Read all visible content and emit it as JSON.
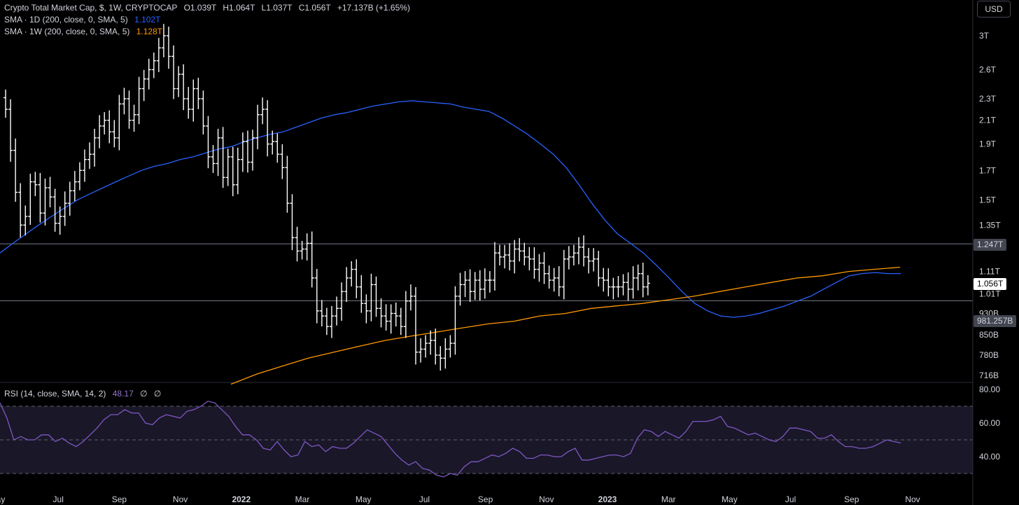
{
  "header": {
    "title": "Crypto Total Market Cap, $, 1W, CRYPTOCAP",
    "open": "O1.039T",
    "high": "H1.064T",
    "low": "L1.037T",
    "close": "C1.056T",
    "change": "+17.137B (+1.65%)",
    "sma1_label": "SMA · 1D (200, close, 0, SMA, 5)",
    "sma1_value": "1.102T",
    "sma2_label": "SMA · 1W (200, close, 0, SMA, 5)",
    "sma2_value": "1.128T",
    "rsi_label": "RSI (14, close, SMA, 14, 2)",
    "rsi_value": "48.17",
    "rsi_extra1": "∅",
    "rsi_extra2": "∅",
    "currency": "USD"
  },
  "price_tags": {
    "resistance": "1.247T",
    "current": "1.056T",
    "support": "981.257B"
  },
  "colors": {
    "background": "#000000",
    "bars": "#ffffff",
    "sma_1d": "#2962ff",
    "sma_1w": "#ff9800",
    "rsi": "#7e57c2",
    "rsi_band": "#1a1729",
    "hline": "#787b86",
    "axis_text": "#d1d4dc"
  },
  "chart_data": {
    "type": "ohlc",
    "scale": "log",
    "interval": "1W",
    "price_axis": {
      "ticks": [
        {
          "value": 3.0,
          "label": "3T"
        },
        {
          "value": 2.6,
          "label": "2.6T"
        },
        {
          "value": 2.3,
          "label": "2.3T"
        },
        {
          "value": 2.1,
          "label": "2.1T"
        },
        {
          "value": 1.9,
          "label": "1.9T"
        },
        {
          "value": 1.7,
          "label": "1.7T"
        },
        {
          "value": 1.5,
          "label": "1.5T"
        },
        {
          "value": 1.35,
          "label": "1.35T"
        },
        {
          "value": 1.11,
          "label": "1.11T"
        },
        {
          "value": 1.01,
          "label": "1.01T"
        },
        {
          "value": 0.93,
          "label": "930B"
        },
        {
          "value": 0.85,
          "label": "850B"
        },
        {
          "value": 0.78,
          "label": "780B"
        },
        {
          "value": 0.716,
          "label": "716B"
        }
      ]
    },
    "time_axis": [
      "May",
      "Jul",
      "Sep",
      "Nov",
      "2022",
      "Mar",
      "May",
      "Jul",
      "Sep",
      "Nov",
      "2023",
      "Mar",
      "May",
      "Jul",
      "Sep",
      "Nov"
    ],
    "horizontal_lines": [
      1.247,
      0.981257
    ],
    "close_series": [
      2.2,
      1.85,
      1.55,
      1.35,
      1.4,
      1.62,
      1.6,
      1.42,
      1.58,
      1.52,
      1.36,
      1.4,
      1.48,
      1.56,
      1.62,
      1.7,
      1.78,
      1.82,
      1.95,
      2.05,
      2.1,
      2.0,
      1.95,
      2.25,
      2.3,
      2.1,
      2.15,
      2.4,
      2.5,
      2.6,
      2.7,
      2.85,
      3.0,
      2.75,
      2.4,
      2.55,
      2.3,
      2.2,
      2.4,
      2.3,
      2.05,
      1.8,
      1.75,
      1.95,
      1.65,
      1.8,
      1.6,
      1.78,
      1.92,
      1.76,
      1.95,
      2.15,
      2.2,
      1.9,
      1.92,
      1.82,
      1.72,
      1.48,
      1.28,
      1.21,
      1.22,
      1.25,
      1.08,
      0.94,
      0.92,
      0.88,
      0.92,
      0.95,
      1.02,
      1.08,
      1.12,
      1.04,
      0.97,
      0.94,
      1.05,
      0.95,
      0.92,
      0.9,
      0.93,
      0.92,
      0.88,
      0.98,
      1.0,
      0.79,
      0.8,
      0.82,
      0.83,
      0.78,
      0.77,
      0.8,
      0.82,
      1.0,
      1.05,
      1.07,
      1.02,
      1.07,
      1.03,
      1.07,
      1.07,
      1.2,
      1.18,
      1.19,
      1.16,
      1.22,
      1.21,
      1.18,
      1.17,
      1.12,
      1.15,
      1.1,
      1.07,
      1.08,
      1.04,
      1.17,
      1.18,
      1.2,
      1.23,
      1.18,
      1.16,
      1.17,
      1.08,
      1.07,
      1.04,
      1.04,
      1.04,
      1.06,
      1.03,
      1.08,
      1.1,
      1.04,
      1.056
    ],
    "sma_1d": [
      1.2,
      1.25,
      1.3,
      1.35,
      1.4,
      1.45,
      1.5,
      1.54,
      1.58,
      1.62,
      1.66,
      1.7,
      1.73,
      1.75,
      1.78,
      1.8,
      1.83,
      1.86,
      1.88,
      1.92,
      1.95,
      1.98,
      2.0,
      2.04,
      2.08,
      2.12,
      2.15,
      2.17,
      2.2,
      2.23,
      2.25,
      2.27,
      2.28,
      2.27,
      2.26,
      2.25,
      2.22,
      2.2,
      2.18,
      2.12,
      2.05,
      1.98,
      1.9,
      1.82,
      1.72,
      1.6,
      1.48,
      1.38,
      1.3,
      1.25,
      1.2,
      1.14,
      1.08,
      1.02,
      0.97,
      0.94,
      0.92,
      0.915,
      0.92,
      0.93,
      0.945,
      0.96,
      0.98,
      1.0,
      1.03,
      1.06,
      1.09,
      1.1,
      1.105,
      1.1,
      1.1
    ],
    "sma_1w": [
      0.69,
      0.72,
      0.745,
      0.77,
      0.79,
      0.81,
      0.83,
      0.845,
      0.86,
      0.875,
      0.89,
      0.9,
      0.92,
      0.93,
      0.95,
      0.96,
      0.97,
      0.985,
      1.0,
      1.02,
      1.04,
      1.06,
      1.08,
      1.09,
      1.11,
      1.12,
      1.13
    ],
    "rsi": [
      72,
      63,
      50,
      52,
      50,
      50,
      53,
      53,
      49,
      51,
      48,
      46,
      49,
      53,
      57,
      62,
      65,
      65,
      68,
      66,
      66,
      60,
      59,
      63,
      65,
      64,
      63,
      67,
      68,
      70,
      73,
      72,
      68,
      64,
      58,
      53,
      53,
      50,
      45,
      44,
      49,
      44,
      40,
      41,
      49,
      46,
      47,
      43,
      46,
      45,
      45,
      48,
      52,
      56,
      54,
      52,
      47,
      42,
      38,
      35,
      37,
      33,
      32,
      29,
      28,
      30,
      29,
      34,
      37,
      37,
      39,
      41,
      40,
      42,
      45,
      43,
      39,
      39,
      41,
      41,
      40,
      40,
      43,
      45,
      38,
      38,
      39,
      40,
      41,
      41,
      40,
      42,
      51,
      56,
      55,
      52,
      55,
      53,
      51,
      55,
      61,
      61,
      61,
      62,
      64,
      58,
      57,
      55,
      53,
      54,
      52,
      50,
      49,
      52,
      57,
      57,
      56,
      55,
      51,
      51,
      53,
      49,
      46,
      46,
      45,
      45,
      46,
      48,
      50,
      49,
      48.17
    ]
  }
}
